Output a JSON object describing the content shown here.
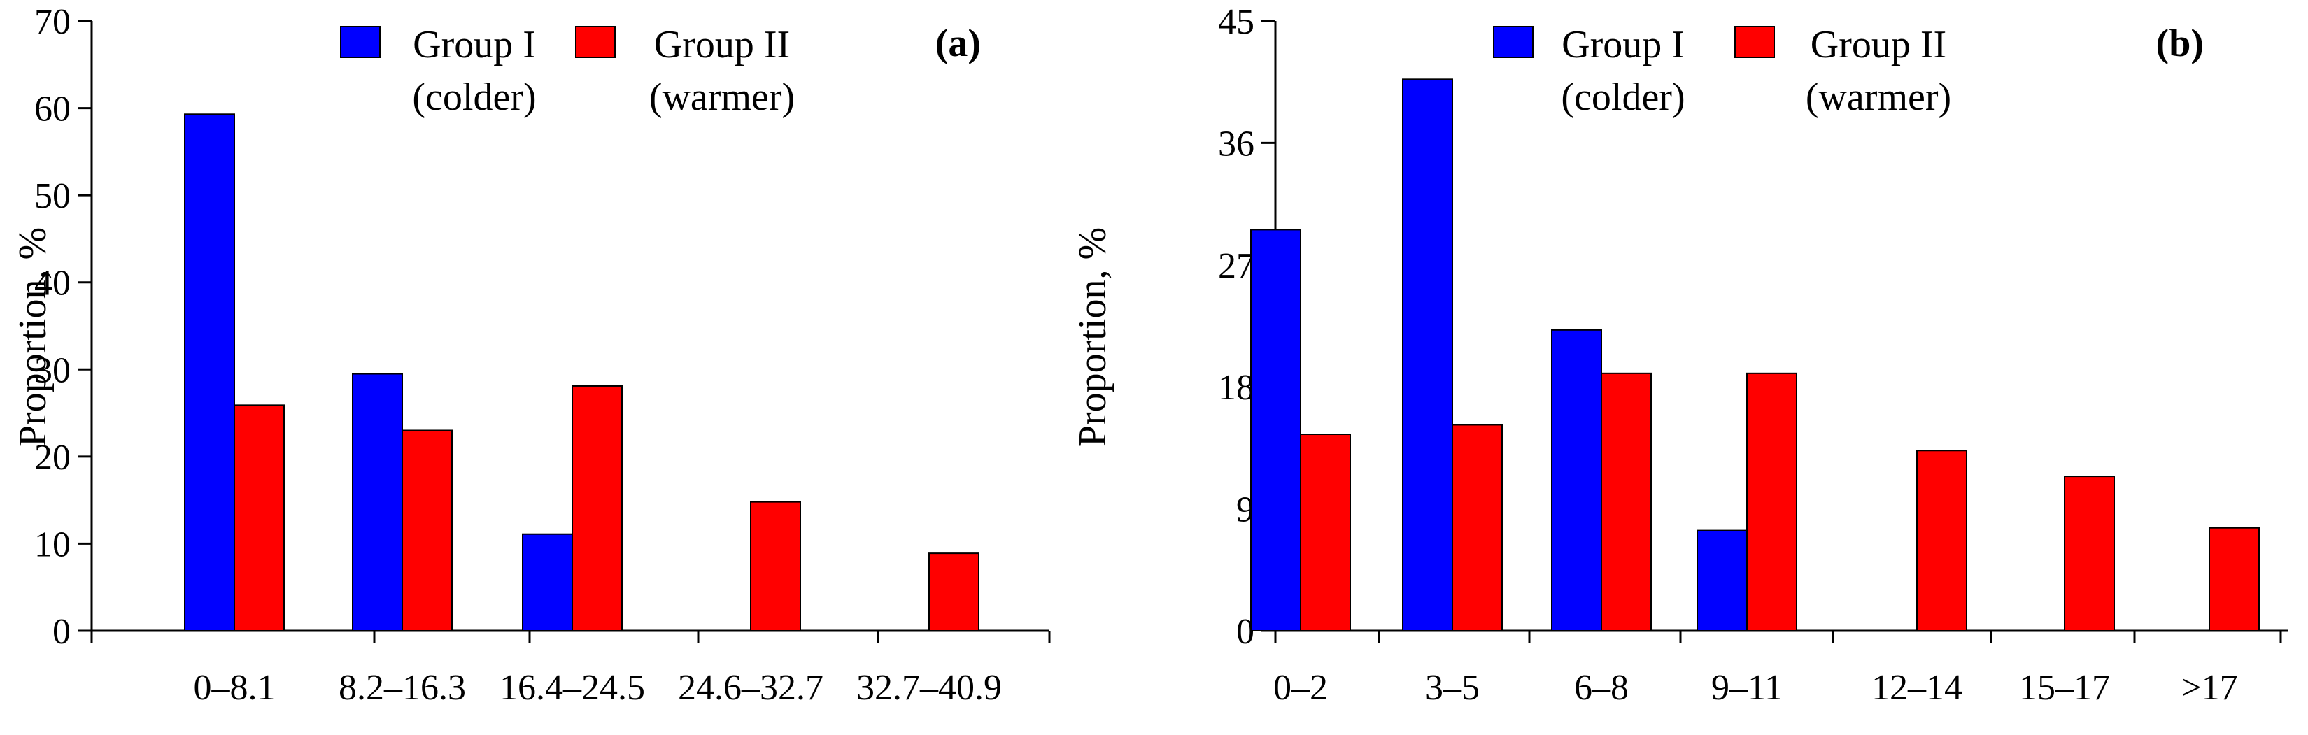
{
  "colors": {
    "group1": "#0000ff",
    "group2": "#ff0000"
  },
  "chart_data": [
    {
      "type": "bar",
      "panel": "(a)",
      "categories": [
        "0–8.1",
        "8.2–16.3",
        "16.4–24.5",
        "24.6–32.7",
        "32.7–40.9"
      ],
      "series": [
        {
          "name": "Group I (colder)",
          "label_line1": "Group I",
          "label_line2": "(colder)",
          "values": [
            59.3,
            29.5,
            11.1,
            null,
            null
          ]
        },
        {
          "name": "Group II (warmer)",
          "label_line1": "Group II",
          "label_line2": "(warmer)",
          "values": [
            25.9,
            23.0,
            28.1,
            14.8,
            8.9
          ]
        }
      ],
      "ylabel": "Proportion, %",
      "xlabel": "",
      "ylim": [
        0,
        70
      ],
      "yticks": [
        "0",
        "10",
        "20",
        "30",
        "40",
        "50",
        "60",
        "70"
      ],
      "legend": "top"
    },
    {
      "type": "bar",
      "panel": "(b)",
      "categories": [
        "0–2",
        "3–5",
        "6–8",
        "9–11",
        "12–14",
        "15–17",
        ">17"
      ],
      "series": [
        {
          "name": "Group I (colder)",
          "label_line1": "Group I",
          "label_line2": "(colder)",
          "values": [
            29.6,
            40.7,
            22.2,
            7.4,
            null,
            null,
            null
          ]
        },
        {
          "name": "Group II (warmer)",
          "label_line1": "Group II",
          "label_line2": "(warmer)",
          "values": [
            14.5,
            15.2,
            19.0,
            19.0,
            13.3,
            11.4,
            7.6
          ]
        }
      ],
      "ylabel": "Proportion, %",
      "xlabel": "",
      "ylim": [
        0,
        45
      ],
      "yticks": [
        "0",
        "9",
        "18",
        "27",
        "36",
        "45"
      ],
      "legend": "top"
    }
  ]
}
